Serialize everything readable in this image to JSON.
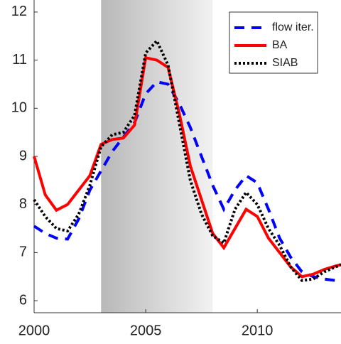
{
  "chart_data": {
    "type": "line",
    "x": [
      2000,
      2000.5,
      2001,
      2001.5,
      2002,
      2002.5,
      2003,
      2003.5,
      2004,
      2004.5,
      2005,
      2005.5,
      2006,
      2006.5,
      2007,
      2007.5,
      2008,
      2008.5,
      2009,
      2009.5,
      2010,
      2010.5,
      2011,
      2011.5,
      2012,
      2012.5,
      2013,
      2013.5,
      2013.75
    ],
    "series": [
      {
        "name": "flow iter.",
        "color": "#0000ff",
        "dash": "dashed",
        "values": [
          7.55,
          7.4,
          7.3,
          7.28,
          7.7,
          8.3,
          8.7,
          9.1,
          9.4,
          9.7,
          10.3,
          10.55,
          10.5,
          10.1,
          9.6,
          9.0,
          8.4,
          7.9,
          8.3,
          8.6,
          8.45,
          7.9,
          7.3,
          6.9,
          6.6,
          6.5,
          6.45,
          6.42,
          6.4
        ]
      },
      {
        "name": "BA",
        "color": "#ff0000",
        "dash": "solid",
        "values": [
          9.0,
          8.2,
          7.88,
          8.0,
          8.3,
          8.6,
          9.25,
          9.35,
          9.38,
          9.65,
          11.05,
          11.0,
          10.85,
          9.9,
          8.8,
          8.1,
          7.4,
          7.1,
          7.5,
          7.9,
          7.75,
          7.3,
          7.0,
          6.7,
          6.5,
          6.55,
          6.65,
          6.72,
          6.75
        ]
      },
      {
        "name": "SIAB",
        "color": "#000000",
        "dash": "dotted",
        "values": [
          8.1,
          7.75,
          7.5,
          7.45,
          7.8,
          8.4,
          9.2,
          9.45,
          9.5,
          9.85,
          11.15,
          11.4,
          10.9,
          9.7,
          8.5,
          7.8,
          7.35,
          7.2,
          7.9,
          8.25,
          8.0,
          7.5,
          7.15,
          6.7,
          6.42,
          6.45,
          6.6,
          6.7,
          6.75
        ]
      }
    ],
    "shaded_span": [
      2003,
      2008
    ],
    "xlim": [
      2000,
      2013.75
    ],
    "xticks": [
      2000,
      2005,
      2010
    ],
    "ylim": [
      5.75,
      12.25
    ],
    "yticks": [
      6,
      7,
      8,
      9,
      10,
      11,
      12
    ],
    "legend": "upper right"
  }
}
